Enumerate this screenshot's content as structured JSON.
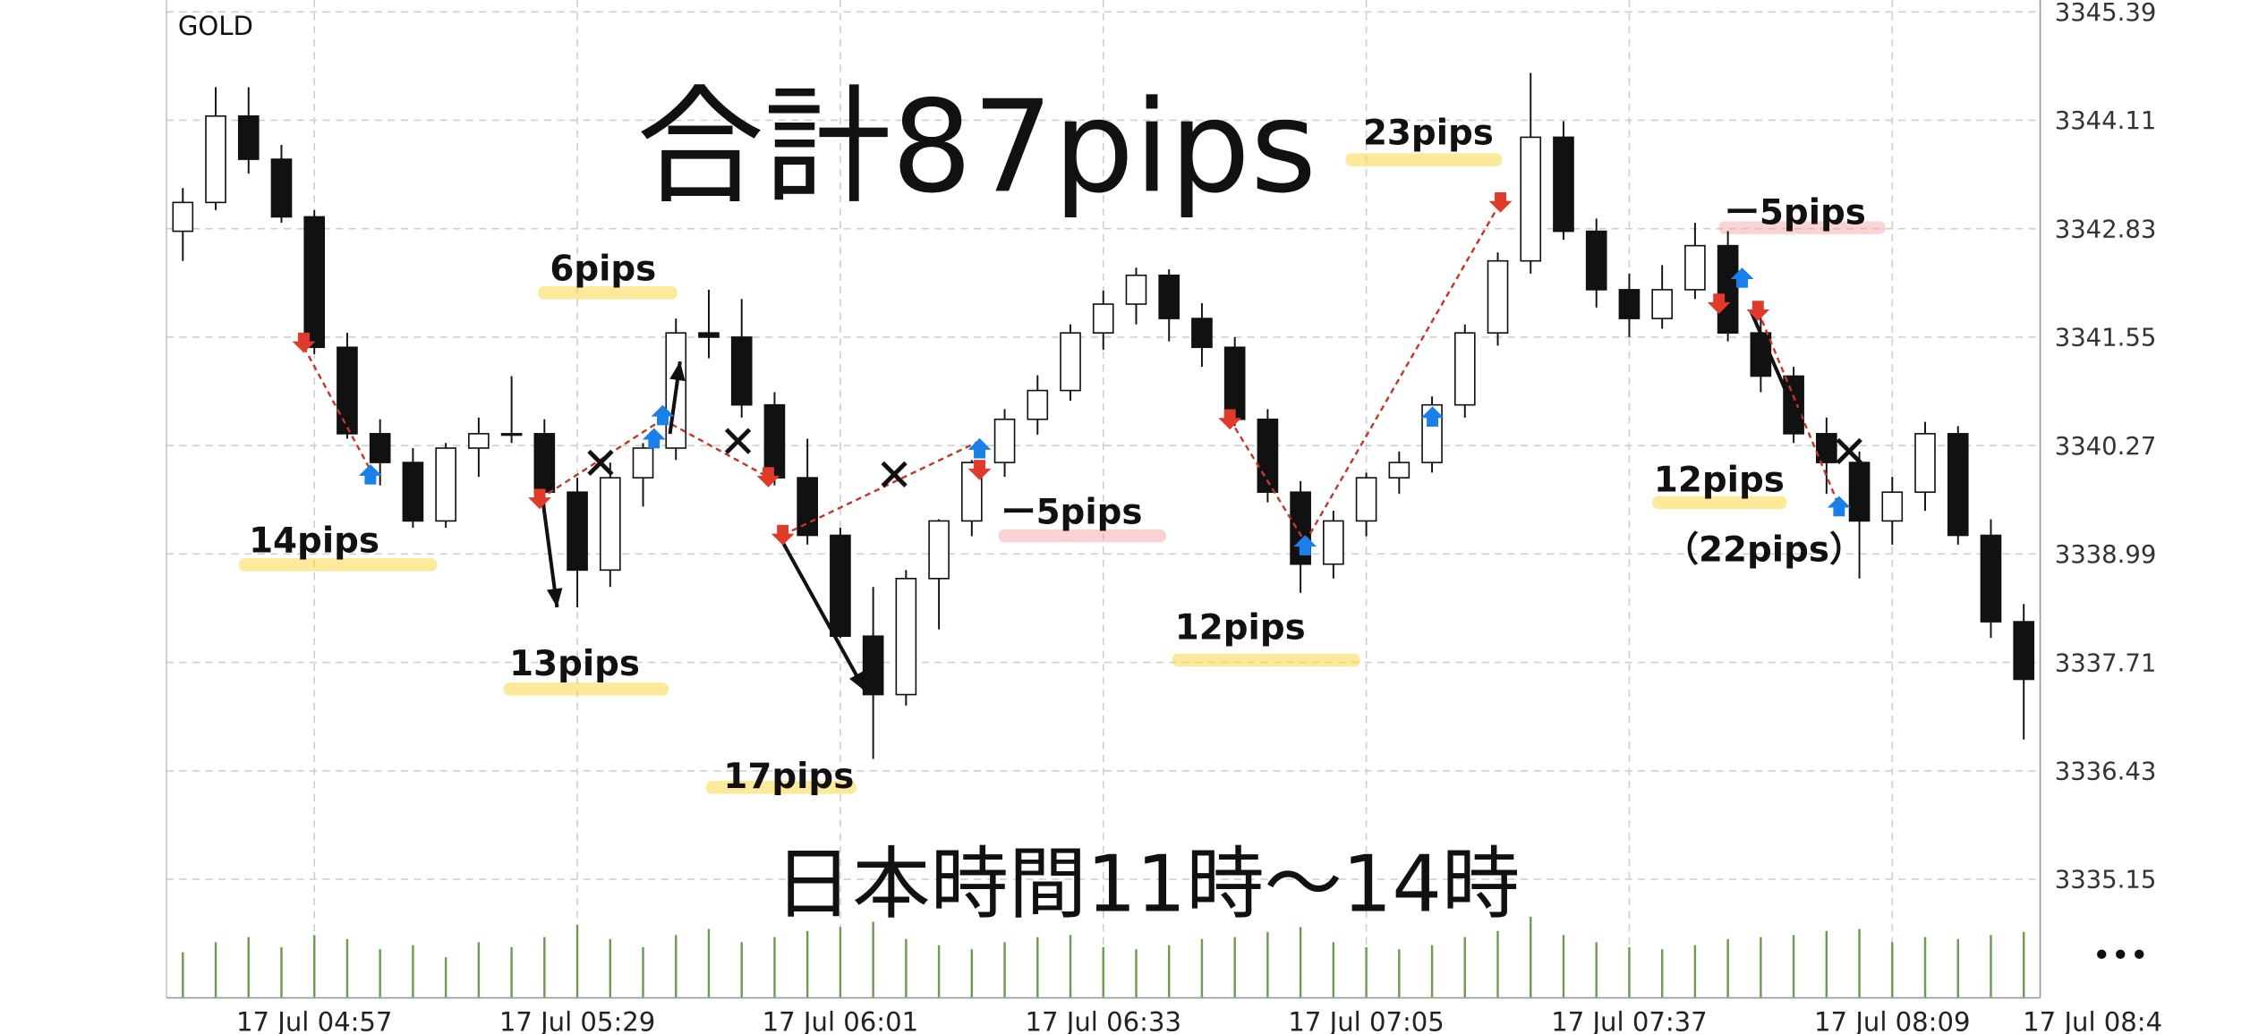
{
  "chart_data": {
    "type": "candlestick",
    "symbol": "GOLD",
    "headline": "合計87pips",
    "subtitle": "日本時間11時〜14時",
    "menu": "•••",
    "categories": [
      null,
      null,
      null,
      null,
      "17 Jul 04:57",
      null,
      null,
      null,
      null,
      null,
      null,
      null,
      "17 Jul 05:29",
      null,
      null,
      null,
      null,
      null,
      null,
      null,
      "17 Jul 06:01",
      null,
      null,
      null,
      null,
      null,
      null,
      null,
      "17 Jul 06:33",
      null,
      null,
      null,
      null,
      null,
      null,
      null,
      "17 Jul 07:05",
      null,
      null,
      null,
      null,
      null,
      null,
      null,
      "17 Jul 07:37",
      null,
      null,
      null,
      null,
      null,
      null,
      null,
      "17 Jul 08:09",
      null,
      null,
      null,
      null
    ],
    "x_edge_label": "17 Jul 08:4",
    "open": [
      3342.8,
      3343.14,
      3344.16,
      3343.65,
      3342.97,
      3341.43,
      3340.41,
      3340.07,
      3339.38,
      3340.24,
      3340.41,
      3340.41,
      3339.72,
      3338.8,
      3339.89,
      3340.24,
      3341.6,
      3341.55,
      3340.75,
      3339.89,
      3339.21,
      3338.02,
      3337.33,
      3338.7,
      3339.38,
      3340.07,
      3340.58,
      3340.92,
      3341.6,
      3341.94,
      3342.28,
      3341.77,
      3341.43,
      3340.58,
      3339.72,
      3338.87,
      3339.38,
      3339.89,
      3340.07,
      3340.75,
      3341.6,
      3342.45,
      3343.91,
      3342.8,
      3342.11,
      3341.77,
      3342.11,
      3342.63,
      3341.6,
      3341.09,
      3340.41,
      3340.07,
      3339.38,
      3339.72,
      3340.41,
      3339.21,
      3338.19
    ],
    "high": [
      3343.31,
      3344.5,
      3344.5,
      3343.82,
      3343.05,
      3341.6,
      3340.58,
      3340.24,
      3340.3,
      3340.6,
      3341.09,
      3340.58,
      3339.89,
      3340.07,
      3340.3,
      3341.77,
      3342.11,
      3342.0,
      3340.9,
      3340.35,
      3339.3,
      3338.6,
      3338.8,
      3339.4,
      3340.1,
      3340.7,
      3341.1,
      3341.7,
      3342.1,
      3342.37,
      3342.35,
      3341.95,
      3341.55,
      3340.7,
      3339.85,
      3339.5,
      3339.95,
      3340.2,
      3340.85,
      3341.7,
      3342.55,
      3344.67,
      3344.1,
      3342.95,
      3342.3,
      3342.4,
      3342.9,
      3342.8,
      3341.8,
      3341.2,
      3340.6,
      3340.2,
      3339.9,
      3340.55,
      3340.5,
      3339.4,
      3338.4
    ],
    "low": [
      3342.45,
      3343.05,
      3343.48,
      3342.9,
      3341.35,
      3340.35,
      3339.8,
      3339.3,
      3339.3,
      3339.9,
      3340.3,
      3339.55,
      3338.36,
      3338.6,
      3339.55,
      3340.1,
      3341.3,
      3340.6,
      3339.8,
      3339.1,
      3338.0,
      3336.57,
      3337.2,
      3338.1,
      3339.2,
      3339.9,
      3340.4,
      3340.8,
      3341.4,
      3341.7,
      3341.5,
      3341.2,
      3340.5,
      3339.6,
      3338.53,
      3338.7,
      3339.2,
      3339.7,
      3339.95,
      3340.6,
      3341.45,
      3342.3,
      3342.7,
      3341.9,
      3341.55,
      3341.65,
      3342.0,
      3341.5,
      3340.9,
      3340.3,
      3339.7,
      3338.7,
      3339.1,
      3339.5,
      3339.1,
      3338.0,
      3336.8
    ],
    "close": [
      3343.14,
      3344.16,
      3343.65,
      3342.97,
      3341.43,
      3340.41,
      3340.07,
      3339.38,
      3340.24,
      3340.41,
      3340.41,
      3339.72,
      3338.8,
      3339.89,
      3340.24,
      3341.6,
      3341.55,
      3340.75,
      3339.89,
      3339.21,
      3338.02,
      3337.33,
      3338.7,
      3339.38,
      3340.07,
      3340.58,
      3340.92,
      3341.6,
      3341.94,
      3342.28,
      3341.77,
      3341.43,
      3340.58,
      3339.72,
      3338.87,
      3339.38,
      3339.89,
      3340.07,
      3340.75,
      3341.6,
      3342.45,
      3343.91,
      3342.8,
      3342.11,
      3341.77,
      3342.11,
      3342.63,
      3341.6,
      3341.09,
      3340.41,
      3340.07,
      3339.38,
      3339.72,
      3340.41,
      3339.21,
      3338.19,
      3337.51
    ],
    "up_color": "#ffffff",
    "down_color": "#111111",
    "volume": [
      45,
      55,
      60,
      50,
      62,
      58,
      48,
      52,
      40,
      55,
      50,
      60,
      72,
      58,
      50,
      62,
      68,
      55,
      60,
      66,
      70,
      75,
      58,
      52,
      48,
      55,
      60,
      62,
      50,
      48,
      52,
      58,
      60,
      65,
      70,
      55,
      50,
      48,
      52,
      60,
      66,
      80,
      62,
      55,
      50,
      48,
      52,
      58,
      60,
      62,
      66,
      68,
      55,
      60,
      58,
      62,
      65
    ],
    "volume_color": "#6f9a55",
    "volume_ylim": [
      0,
      100
    ],
    "ylim": [
      3333.75,
      3345.53
    ],
    "yticks": [
      3345.39,
      3344.11,
      3342.83,
      3341.55,
      3340.27,
      3338.99,
      3337.71,
      3336.43,
      3335.15
    ],
    "grid": true,
    "annotations": [
      "14pips",
      "13pips",
      "6pips",
      "17pips",
      "ー5pips",
      "12pips",
      "23pips",
      "ー5pips",
      "12pips",
      "（22pips）"
    ]
  }
}
